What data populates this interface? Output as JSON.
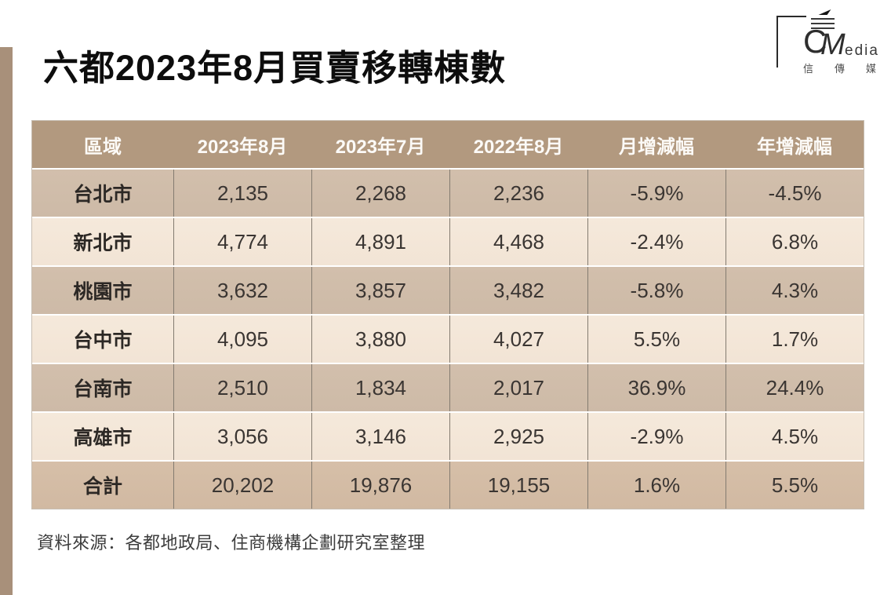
{
  "page": {
    "title": "六都2023年8月買賣移轉棟數",
    "source_note": "資料來源：各都地政局、住商機構企劃研究室整理"
  },
  "logo": {
    "c": "C",
    "m": "M",
    "edia": "edia",
    "cjk": "信傳媒"
  },
  "table": {
    "columns": [
      "區域",
      "2023年8月",
      "2023年7月",
      "2022年8月",
      "月增減幅",
      "年增減幅"
    ],
    "rows": [
      {
        "cells": [
          "台北市",
          "2,135",
          "2,268",
          "2,236",
          "-5.9%",
          "-4.5%"
        ]
      },
      {
        "cells": [
          "新北市",
          "4,774",
          "4,891",
          "4,468",
          "-2.4%",
          "6.8%"
        ]
      },
      {
        "cells": [
          "桃園市",
          "3,632",
          "3,857",
          "3,482",
          "-5.8%",
          "4.3%"
        ]
      },
      {
        "cells": [
          "台中市",
          "4,095",
          "3,880",
          "4,027",
          "5.5%",
          "1.7%"
        ]
      },
      {
        "cells": [
          "台南市",
          "2,510",
          "1,834",
          "2,017",
          "36.9%",
          "24.4%"
        ]
      },
      {
        "cells": [
          "高雄市",
          "3,056",
          "3,146",
          "2,925",
          "-2.9%",
          "4.5%"
        ]
      }
    ],
    "total": {
      "cells": [
        "合計",
        "20,202",
        "19,876",
        "19,155",
        "1.6%",
        "5.5%"
      ]
    }
  },
  "colors": {
    "header_bg": "#b2997f",
    "row_odd_bg": "#cfbca9",
    "row_even_bg": "#f4e7d8",
    "total_row_bg": "#d3bba4",
    "accent_bar": "#a8907a",
    "header_text": "#fcfaf7",
    "cell_text": "#3a3532"
  },
  "chart_data": {
    "type": "table",
    "title": "六都2023年8月買賣移轉棟數",
    "columns": [
      "區域",
      "2023年8月",
      "2023年7月",
      "2022年8月",
      "月增減幅",
      "年增減幅"
    ],
    "rows": [
      [
        "台北市",
        2135,
        2268,
        2236,
        "-5.9%",
        "-4.5%"
      ],
      [
        "新北市",
        4774,
        4891,
        4468,
        "-2.4%",
        "6.8%"
      ],
      [
        "桃園市",
        3632,
        3857,
        3482,
        "-5.8%",
        "4.3%"
      ],
      [
        "台中市",
        4095,
        3880,
        4027,
        "5.5%",
        "1.7%"
      ],
      [
        "台南市",
        2510,
        1834,
        2017,
        "36.9%",
        "24.4%"
      ],
      [
        "高雄市",
        3056,
        3146,
        2925,
        "-2.9%",
        "4.5%"
      ],
      [
        "合計",
        20202,
        19876,
        19155,
        "1.6%",
        "5.5%"
      ]
    ],
    "source": "資料來源：各都地政局、住商機構企劃研究室整理"
  }
}
